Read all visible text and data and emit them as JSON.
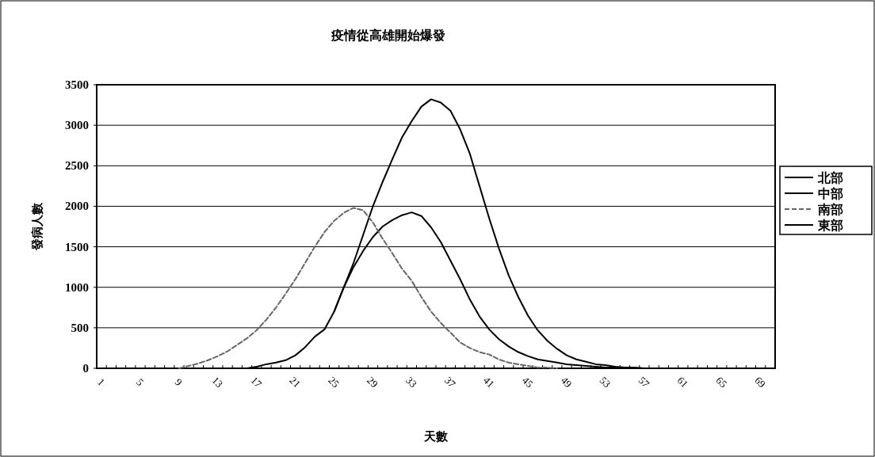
{
  "chart_data": {
    "type": "line",
    "title": "疫情從高雄開始爆發",
    "xlabel": "天數",
    "ylabel": "發病人數",
    "categories": [
      "1",
      null,
      null,
      null,
      "5",
      null,
      null,
      null,
      "9",
      null,
      null,
      null,
      "13",
      null,
      null,
      null,
      "17",
      null,
      null,
      null,
      "21",
      null,
      null,
      null,
      "25",
      null,
      null,
      null,
      "29",
      null,
      null,
      null,
      "33",
      null,
      null,
      null,
      "37",
      null,
      null,
      null,
      "41",
      null,
      null,
      null,
      "45",
      null,
      null,
      null,
      "49",
      null,
      null,
      null,
      "53",
      null,
      null,
      null,
      "57",
      null,
      null,
      null,
      "61",
      null,
      null,
      null,
      "65",
      null,
      null,
      null,
      "69",
      null
    ],
    "series": [
      {
        "name": "北部",
        "color": "#000000",
        "line_style": "solid",
        "values": [
          null,
          null,
          null,
          null,
          null,
          null,
          null,
          null,
          null,
          null,
          null,
          null,
          null,
          null,
          null,
          0,
          20,
          50,
          70,
          100,
          160,
          260,
          390,
          480,
          700,
          1000,
          1300,
          1650,
          2000,
          2300,
          2580,
          2850,
          3050,
          3230,
          3320,
          3280,
          3180,
          2950,
          2650,
          2250,
          1850,
          1480,
          1150,
          880,
          650,
          470,
          340,
          240,
          160,
          110,
          80,
          50,
          40,
          20,
          10,
          10,
          0,
          null,
          null,
          null,
          null,
          null,
          null,
          null,
          null,
          null,
          null,
          null,
          null,
          null
        ]
      },
      {
        "name": "中部",
        "color": "#000000",
        "line_style": "solid",
        "values": [
          null,
          null,
          null,
          null,
          null,
          null,
          null,
          null,
          null,
          null,
          null,
          null,
          null,
          null,
          null,
          null,
          null,
          null,
          null,
          null,
          null,
          null,
          null,
          null,
          700,
          1000,
          1250,
          1450,
          1620,
          1750,
          1830,
          1890,
          1925,
          1880,
          1740,
          1560,
          1330,
          1100,
          850,
          640,
          480,
          360,
          270,
          200,
          150,
          110,
          90,
          70,
          50,
          40,
          30,
          20,
          10,
          10,
          0,
          null,
          null,
          null,
          null,
          null,
          null,
          null,
          null,
          null,
          null,
          null,
          null,
          null,
          null,
          null
        ]
      },
      {
        "name": "南部",
        "color": "#666666",
        "line_style": "dashed",
        "values": [
          null,
          null,
          null,
          null,
          null,
          null,
          null,
          null,
          0,
          30,
          60,
          100,
          150,
          210,
          290,
          370,
          470,
          600,
          750,
          920,
          1100,
          1300,
          1500,
          1680,
          1820,
          1920,
          1980,
          1950,
          1800,
          1600,
          1420,
          1230,
          1080,
          880,
          700,
          560,
          440,
          320,
          250,
          200,
          170,
          110,
          70,
          50,
          30,
          10,
          10,
          0,
          null,
          null,
          null,
          null,
          null,
          null,
          null,
          null,
          null,
          null,
          null,
          null,
          null,
          null,
          null,
          null,
          null,
          null,
          null,
          null,
          null,
          null
        ]
      },
      {
        "name": "東部",
        "color": "#000000",
        "line_style": "solid",
        "values": [
          null,
          null,
          null,
          null,
          null,
          null,
          null,
          null,
          null,
          null,
          null,
          null,
          null,
          null,
          null,
          null,
          null,
          null,
          null,
          null,
          null,
          null,
          null,
          null,
          null,
          null,
          null,
          null,
          null,
          null,
          null,
          null,
          null,
          null,
          null,
          null,
          null,
          null,
          null,
          null,
          null,
          null,
          null,
          null,
          null,
          null,
          null,
          null,
          null,
          null,
          null,
          null,
          null,
          null,
          null,
          null,
          null,
          null,
          null,
          null,
          null,
          null,
          null,
          null,
          null,
          null,
          null,
          null,
          null,
          null
        ]
      }
    ],
    "ylim": [
      0,
      3500
    ],
    "yticks": [
      0,
      500,
      1000,
      1500,
      2000,
      2500,
      3000,
      3500
    ],
    "grid": "y",
    "legend": "right"
  }
}
